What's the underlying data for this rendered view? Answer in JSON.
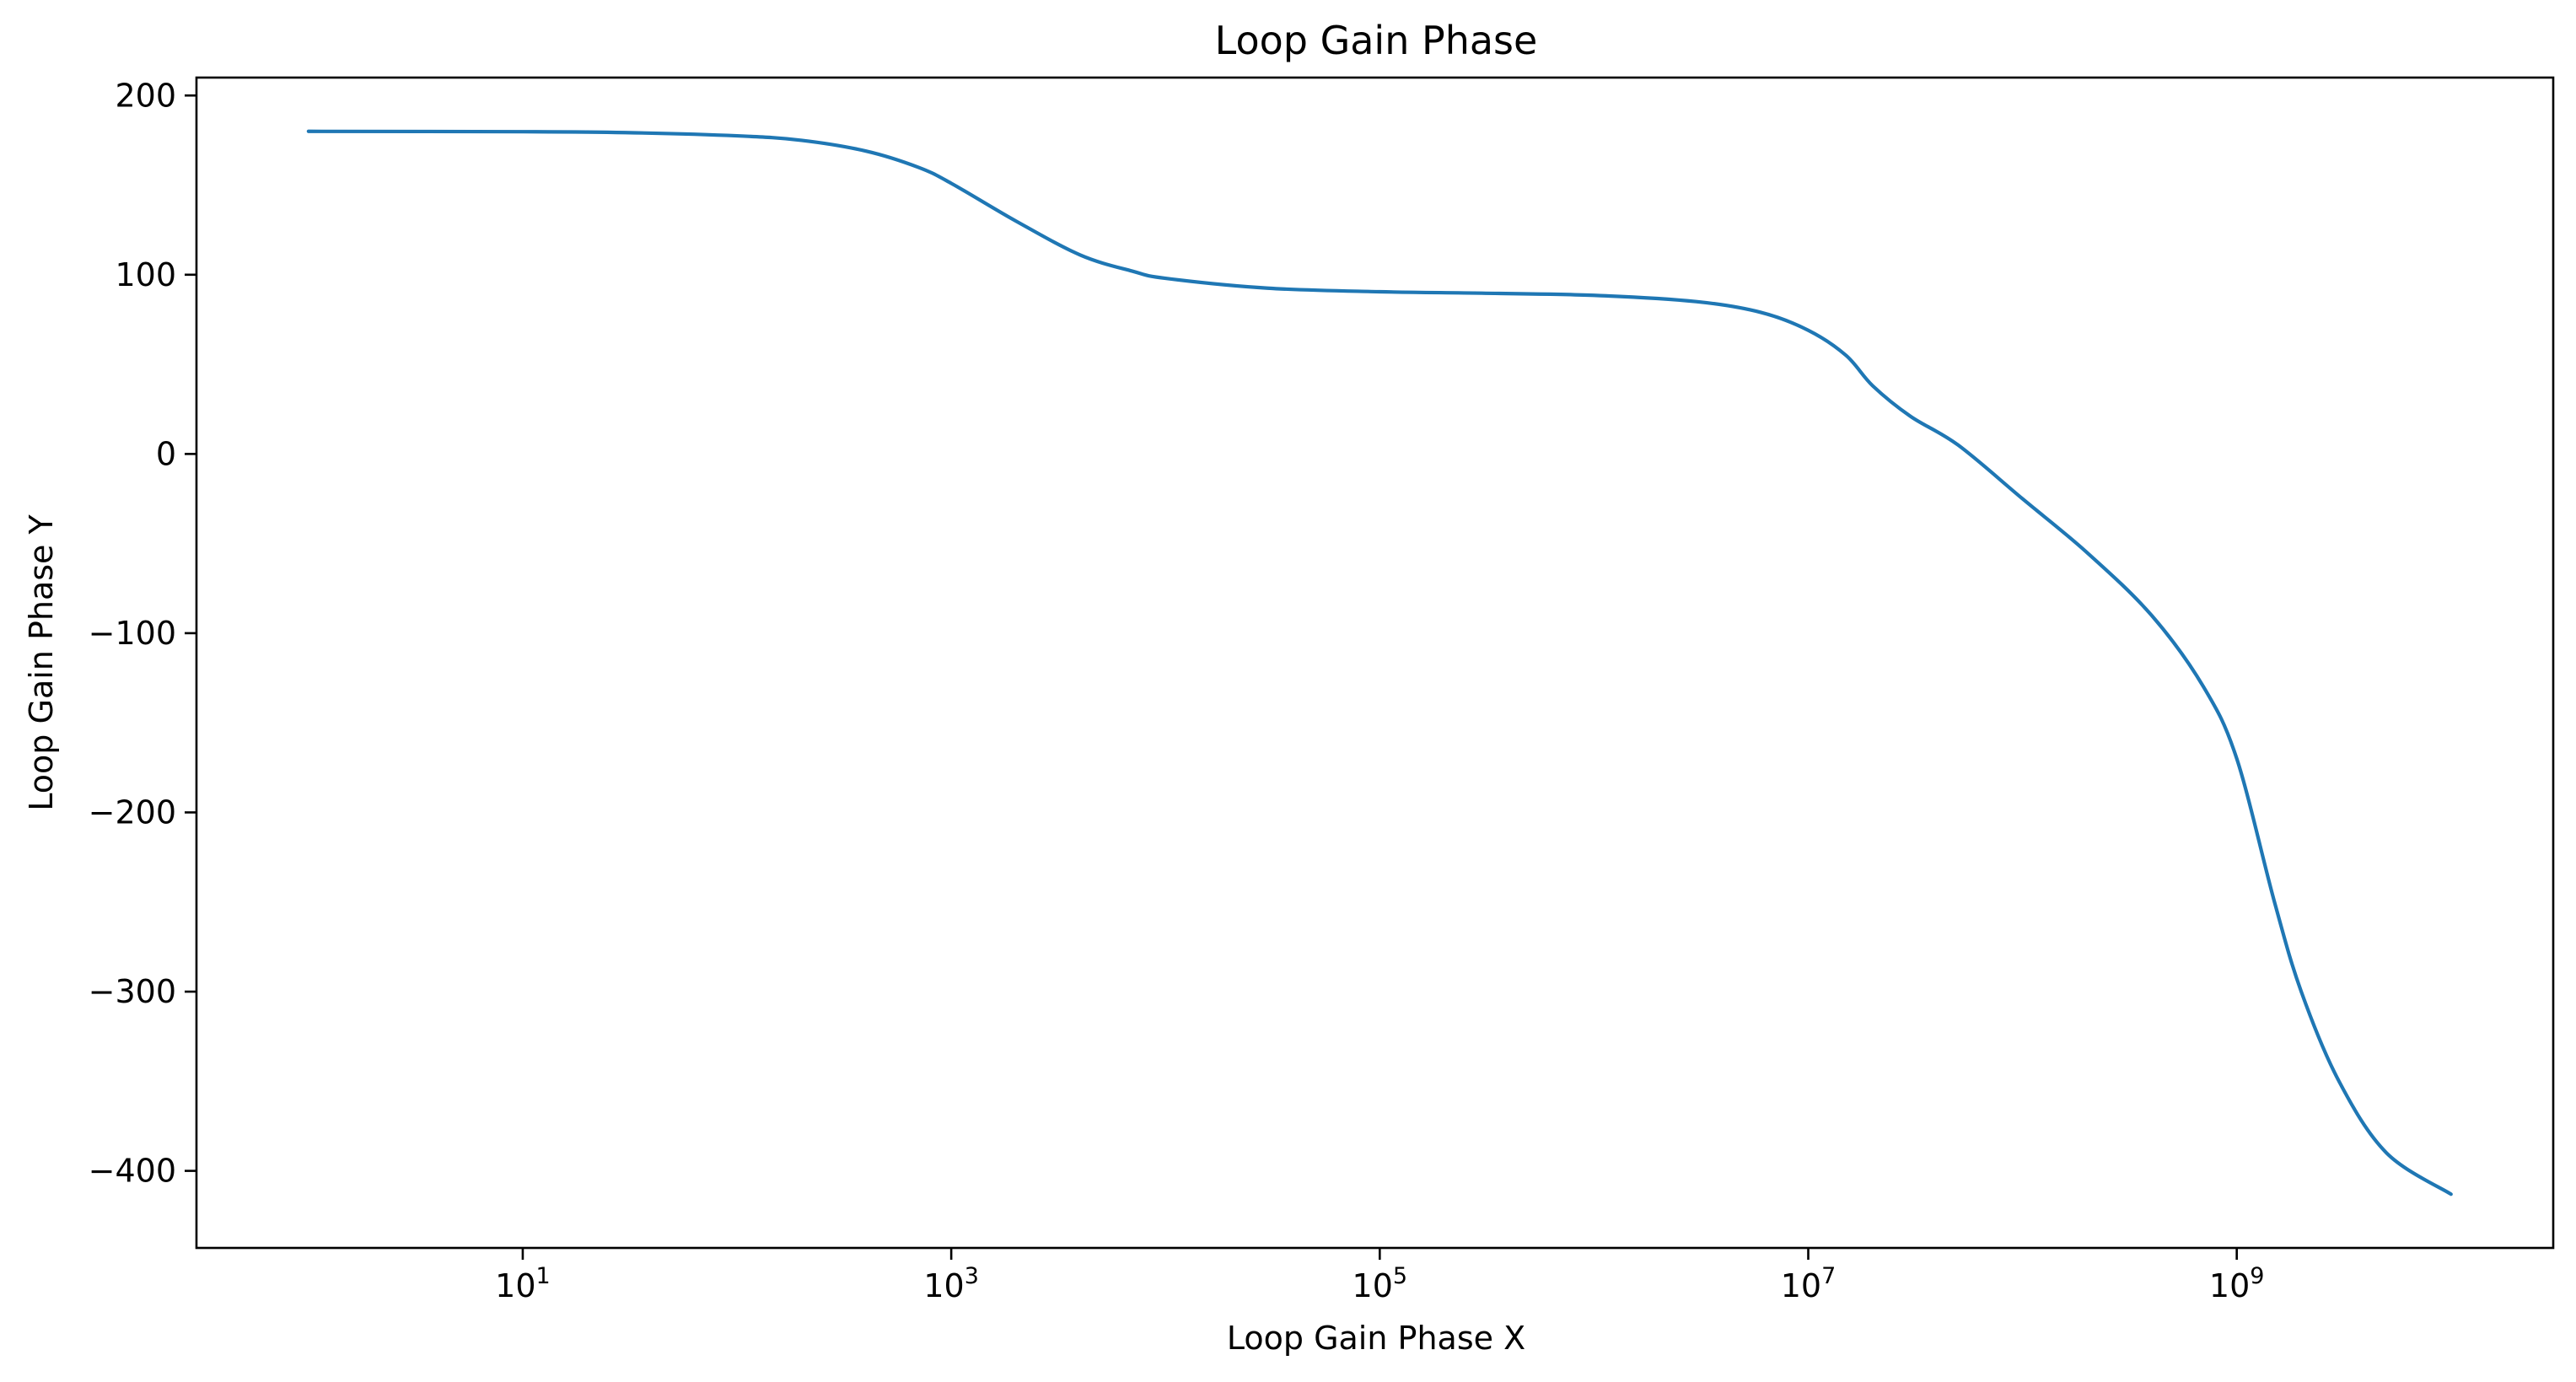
{
  "chart_data": {
    "type": "line",
    "title": "Loop Gain Phase",
    "xlabel": "Loop Gain Phase X",
    "ylabel": "Loop Gain Phase Y",
    "x_scale": "log",
    "xlim": [
      0.3,
      30000000000
    ],
    "ylim": [
      -443,
      210
    ],
    "grid": false,
    "x_ticks": [
      {
        "value": 10,
        "base": "10",
        "exp": "1"
      },
      {
        "value": 1000,
        "base": "10",
        "exp": "3"
      },
      {
        "value": 100000,
        "base": "10",
        "exp": "5"
      },
      {
        "value": 10000000,
        "base": "10",
        "exp": "7"
      },
      {
        "value": 1000000000,
        "base": "10",
        "exp": "9"
      }
    ],
    "y_ticks": [
      {
        "value": 200,
        "label": "200"
      },
      {
        "value": 100,
        "label": "100"
      },
      {
        "value": 0,
        "label": "0"
      },
      {
        "value": -100,
        "label": "−100"
      },
      {
        "value": -200,
        "label": "−200"
      },
      {
        "value": -300,
        "label": "−300"
      },
      {
        "value": -400,
        "label": "−400"
      }
    ],
    "series": [
      {
        "color": "#1f77b4",
        "points": [
          [
            1,
            180
          ],
          [
            10,
            179.8
          ],
          [
            30,
            179.3
          ],
          [
            100,
            177.5
          ],
          [
            200,
            175
          ],
          [
            400,
            169
          ],
          [
            700,
            160
          ],
          [
            1000,
            151
          ],
          [
            2000,
            130
          ],
          [
            4000,
            111
          ],
          [
            7000,
            102
          ],
          [
            10000,
            98
          ],
          [
            30000,
            92.5
          ],
          [
            100000,
            90.5
          ],
          [
            300000,
            89.7
          ],
          [
            1000000,
            88.5
          ],
          [
            3000000,
            85
          ],
          [
            6000000,
            79
          ],
          [
            10000000,
            69
          ],
          [
            15000000,
            55
          ],
          [
            20000000,
            38
          ],
          [
            30000000,
            21
          ],
          [
            50000000,
            5
          ],
          [
            100000000,
            -25
          ],
          [
            200000000,
            -55
          ],
          [
            400000000,
            -90
          ],
          [
            700000000,
            -130
          ],
          [
            1000000000,
            -170
          ],
          [
            1500000000,
            -250
          ],
          [
            2000000000,
            -300
          ],
          [
            3000000000,
            -350
          ],
          [
            5000000000,
            -390
          ],
          [
            10000000000,
            -413
          ]
        ]
      }
    ]
  }
}
